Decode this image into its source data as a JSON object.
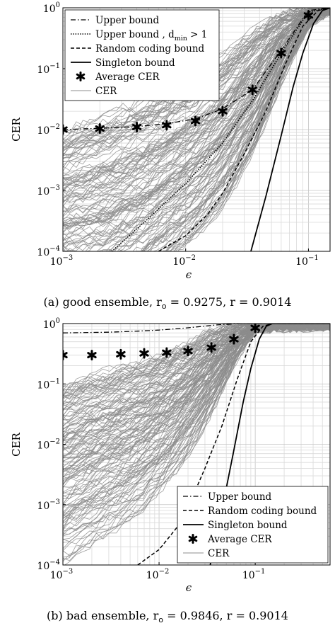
{
  "chart_data": [
    {
      "type": "line",
      "caption": "(a) good ensemble, r",
      "caption_rest": " = 0.9275, r = 0.9014",
      "xlabel": "ϵ",
      "ylabel": "CER",
      "x_scale": "log",
      "y_scale": "log",
      "xlim": [
        0.001,
        0.15
      ],
      "ylim": [
        0.0001,
        1
      ],
      "x_ticks": [
        {
          "base": "10",
          "exp": "−3"
        },
        {
          "base": "10",
          "exp": "−2"
        },
        {
          "base": "10",
          "exp": "−1"
        }
      ],
      "y_ticks": [
        {
          "base": "10",
          "exp": "−4"
        },
        {
          "base": "10",
          "exp": "−3"
        },
        {
          "base": "10",
          "exp": "−2"
        },
        {
          "base": "10",
          "exp": "−1"
        },
        {
          "base": "10",
          "exp": "0"
        }
      ],
      "grid": true,
      "legend_position": "top-left",
      "legend": [
        {
          "label": "Upper bound",
          "style": "dashdot"
        },
        {
          "label": "Upper bound , d",
          "sub": "min",
          "suffix": " > 1",
          "style": "dotted"
        },
        {
          "label": "Random coding bound",
          "style": "dashed"
        },
        {
          "label": "Singleton bound",
          "style": "solid"
        },
        {
          "label": "Average CER",
          "style": "marker"
        },
        {
          "label": "CER",
          "style": "gray"
        }
      ],
      "series": [
        {
          "name": "Upper bound",
          "style": "dashdot",
          "x": [
            0.001,
            0.002,
            0.004,
            0.007,
            0.012,
            0.02,
            0.035,
            0.06,
            0.1,
            0.15
          ],
          "y": [
            0.01,
            0.0105,
            0.0112,
            0.0125,
            0.015,
            0.022,
            0.045,
            0.2,
            0.9,
            1.0
          ]
        },
        {
          "name": "Upper bound , d_min > 1",
          "style": "dotted",
          "x": [
            0.0025,
            0.005,
            0.01,
            0.02,
            0.035,
            0.06,
            0.1,
            0.15
          ],
          "y": [
            0.0001,
            0.00035,
            0.0013,
            0.006,
            0.03,
            0.18,
            0.85,
            1.0
          ]
        },
        {
          "name": "Random coding bound",
          "style": "dashed",
          "x": [
            0.006,
            0.01,
            0.015,
            0.02,
            0.03,
            0.045,
            0.065,
            0.09,
            0.12,
            0.15
          ],
          "y": [
            0.0001,
            0.00018,
            0.0004,
            0.0009,
            0.004,
            0.02,
            0.12,
            0.5,
            0.9,
            1.0
          ]
        },
        {
          "name": "Singleton bound",
          "style": "solid",
          "x": [
            0.034,
            0.045,
            0.06,
            0.075,
            0.09,
            0.11,
            0.13,
            0.15
          ],
          "y": [
            0.0001,
            0.0008,
            0.008,
            0.05,
            0.18,
            0.55,
            0.9,
            1.0
          ]
        },
        {
          "name": "Average CER",
          "style": "marker",
          "x": [
            0.001,
            0.002,
            0.004,
            0.007,
            0.012,
            0.02,
            0.035,
            0.06,
            0.1
          ],
          "y": [
            0.01,
            0.0104,
            0.011,
            0.0118,
            0.0138,
            0.02,
            0.045,
            0.18,
            0.75
          ]
        }
      ],
      "cer_band": {
        "x": [
          0.001,
          0.002,
          0.004,
          0.007,
          0.012,
          0.02,
          0.035,
          0.06,
          0.1,
          0.15
        ],
        "upper": [
          0.01,
          0.018,
          0.03,
          0.05,
          0.09,
          0.18,
          0.45,
          0.9,
          1.0,
          1.0
        ],
        "lower": [
          1e-05,
          1e-05,
          2e-05,
          5e-05,
          0.00012,
          0.0004,
          0.003,
          0.05,
          0.5,
          0.9
        ]
      }
    },
    {
      "type": "line",
      "caption": "(b) bad ensemble, r",
      "caption_rest": " = 0.9846, r = 0.9014",
      "xlabel": "ϵ",
      "ylabel": "CER",
      "x_scale": "log",
      "y_scale": "log",
      "xlim": [
        0.001,
        0.6
      ],
      "ylim": [
        0.0001,
        1
      ],
      "x_ticks": [
        {
          "base": "10",
          "exp": "−3"
        },
        {
          "base": "10",
          "exp": "−2"
        },
        {
          "base": "10",
          "exp": "−1"
        }
      ],
      "y_ticks": [
        {
          "base": "10",
          "exp": "−4"
        },
        {
          "base": "10",
          "exp": "−3"
        },
        {
          "base": "10",
          "exp": "−2"
        },
        {
          "base": "10",
          "exp": "−1"
        },
        {
          "base": "10",
          "exp": "0"
        }
      ],
      "grid": true,
      "legend_position": "bottom-right",
      "legend": [
        {
          "label": "Upper bound",
          "style": "dashdot"
        },
        {
          "label": "Random coding bound",
          "style": "dashed"
        },
        {
          "label": "Singleton bound",
          "style": "solid"
        },
        {
          "label": "Average CER",
          "style": "marker"
        },
        {
          "label": "CER",
          "style": "gray"
        }
      ],
      "series": [
        {
          "name": "Upper bound",
          "style": "dashdot",
          "x": [
            0.001,
            0.003,
            0.006,
            0.01,
            0.02,
            0.04,
            0.07,
            0.1,
            0.6
          ],
          "y": [
            0.7,
            0.72,
            0.75,
            0.78,
            0.85,
            0.95,
            1.0,
            1.0,
            1.0
          ]
        },
        {
          "name": "Random coding bound",
          "style": "dashed",
          "x": [
            0.006,
            0.01,
            0.015,
            0.02,
            0.03,
            0.045,
            0.065,
            0.09,
            0.12,
            0.15,
            0.6
          ],
          "y": [
            0.0001,
            0.00018,
            0.0004,
            0.0009,
            0.004,
            0.02,
            0.12,
            0.5,
            0.9,
            1.0,
            1.0
          ]
        },
        {
          "name": "Singleton bound",
          "style": "solid",
          "x": [
            0.034,
            0.045,
            0.06,
            0.075,
            0.09,
            0.11,
            0.13,
            0.15,
            0.6
          ],
          "y": [
            0.0001,
            0.0008,
            0.008,
            0.05,
            0.18,
            0.55,
            0.9,
            1.0,
            1.0
          ]
        },
        {
          "name": "Average CER",
          "style": "marker",
          "x": [
            0.001,
            0.002,
            0.004,
            0.007,
            0.012,
            0.02,
            0.035,
            0.06,
            0.1
          ],
          "y": [
            0.3,
            0.3,
            0.31,
            0.32,
            0.33,
            0.35,
            0.4,
            0.55,
            0.85
          ]
        }
      ],
      "cer_band": {
        "x": [
          0.001,
          0.002,
          0.004,
          0.007,
          0.012,
          0.02,
          0.035,
          0.06,
          0.1,
          0.6
        ],
        "upper": [
          0.1,
          0.15,
          0.2,
          0.25,
          0.35,
          0.5,
          0.8,
          1.0,
          1.0,
          1.0
        ],
        "lower": [
          0.0001,
          0.0002,
          0.0004,
          0.0008,
          0.002,
          0.006,
          0.03,
          0.2,
          0.8,
          0.9
        ]
      }
    }
  ]
}
